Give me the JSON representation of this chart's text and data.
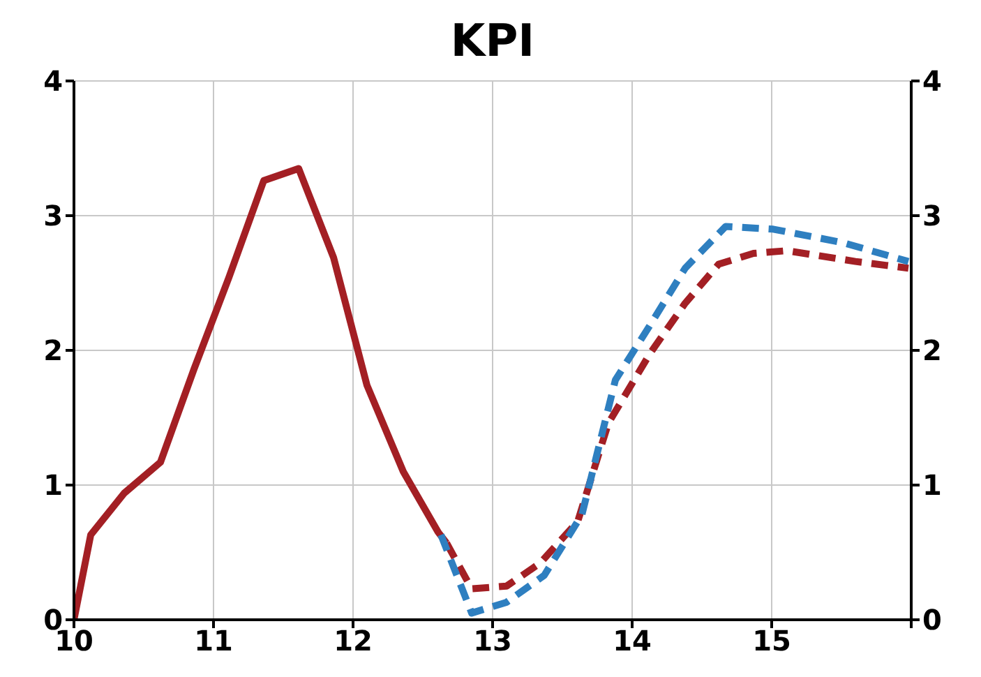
{
  "chart_data": {
    "type": "line",
    "title": "KPI",
    "xlim": [
      10,
      16
    ],
    "xticks": [
      10,
      11,
      12,
      13,
      14,
      15,
      {
        "value": 16,
        "label": null
      }
    ],
    "ylim": [
      0,
      4
    ],
    "yticks": [
      0,
      1,
      2,
      3,
      4
    ],
    "y2lim": [
      0,
      4
    ],
    "y2ticks": [
      0,
      1,
      2,
      3,
      4
    ],
    "grid": true,
    "marker": "none",
    "series": [
      {
        "color": "#a31f24",
        "line_style": "solid",
        "x": [
          10,
          10.12,
          10.36,
          10.62,
          10.86,
          11.11,
          11.36,
          11.61,
          11.86,
          12.1,
          12.36,
          12.61,
          12.67
        ],
        "values": [
          0,
          0.63,
          0.94,
          1.17,
          1.86,
          2.54,
          3.26,
          3.35,
          2.69,
          1.74,
          1.1,
          0.65,
          0.57
        ]
      },
      {
        "color": "#a31f24",
        "line_style": "dashed",
        "x": [
          12.67,
          12.85,
          13.1,
          13.34,
          13.61,
          13.83,
          14.13,
          14.38,
          14.62,
          14.87,
          15.11,
          15.6,
          15.98
        ],
        "values": [
          0.57,
          0.23,
          0.25,
          0.42,
          0.73,
          1.46,
          1.98,
          2.35,
          2.64,
          2.72,
          2.74,
          2.66,
          2.61
        ]
      },
      {
        "color": "#2e7fc0",
        "line_style": "dashed",
        "x": [
          12.63,
          12.85,
          13.1,
          13.37,
          13.64,
          13.88,
          14.13,
          14.38,
          14.67,
          15.01,
          15.51,
          15.98
        ],
        "values": [
          0.63,
          0.05,
          0.13,
          0.33,
          0.78,
          1.78,
          2.19,
          2.61,
          2.92,
          2.9,
          2.8,
          2.66
        ]
      }
    ]
  }
}
